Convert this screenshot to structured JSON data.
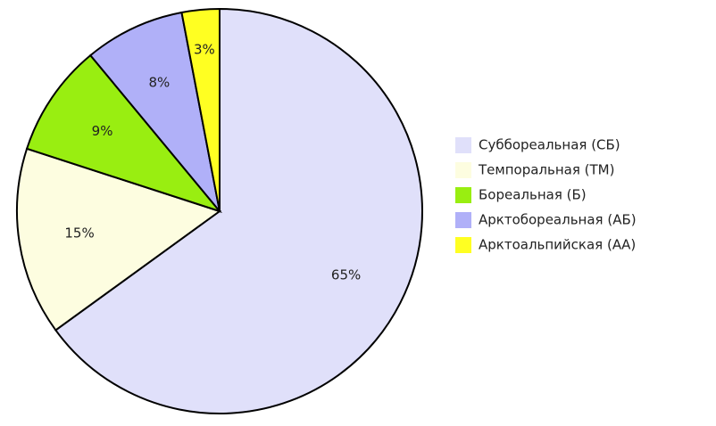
{
  "chart_data": {
    "type": "pie",
    "categories": [
      "Суббореальная (СБ)",
      "Темпоральная (ТМ)",
      "Бореальная (Б)",
      "Арктобореальная (АБ)",
      "Арктоальпийская (АА)"
    ],
    "values": [
      65,
      15,
      9,
      8,
      3
    ],
    "value_labels": [
      "65%",
      "15%",
      "9%",
      "8%",
      "3%"
    ],
    "colors": [
      "#e0e0fa",
      "#fdfde0",
      "#99ee11",
      "#b0b0f8",
      "#ffff22"
    ],
    "legend": "right"
  }
}
